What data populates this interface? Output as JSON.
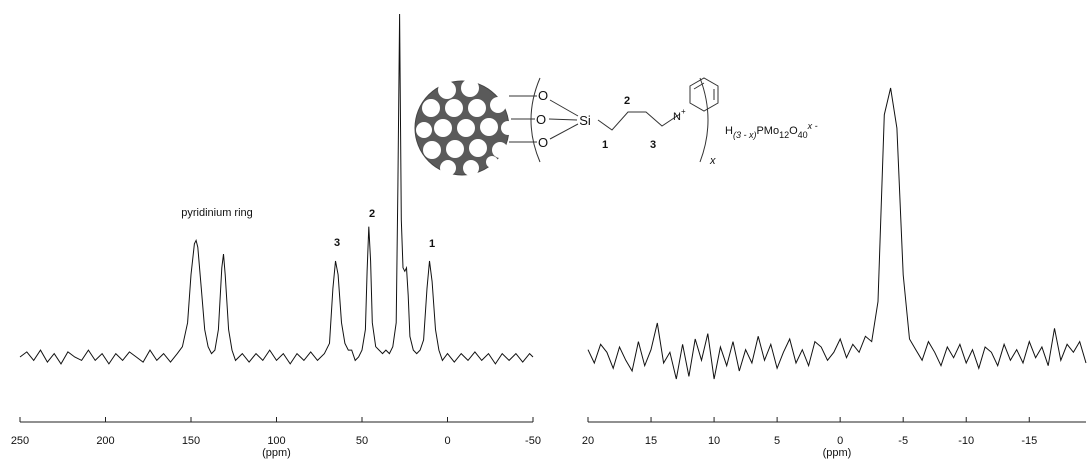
{
  "chart_data": [
    {
      "type": "line",
      "xlabel": "(ppm)",
      "x": [
        250,
        246,
        242,
        238,
        234,
        230,
        226,
        222,
        218,
        214,
        210,
        206,
        202,
        198,
        194,
        190,
        186,
        182,
        178,
        174,
        170,
        166,
        162,
        158,
        155,
        152,
        150,
        148,
        147,
        146,
        144,
        142,
        140,
        138,
        136,
        134,
        132,
        131,
        130,
        128,
        126,
        124,
        120,
        116,
        112,
        108,
        104,
        100,
        96,
        92,
        88,
        84,
        80,
        76,
        72,
        69,
        67,
        65.5,
        64,
        62,
        60,
        58,
        56,
        54,
        52,
        50,
        48,
        47,
        46,
        45,
        44,
        42,
        40,
        38,
        36,
        34,
        32,
        30,
        29,
        28,
        27,
        26,
        25,
        24,
        23,
        22,
        20,
        18,
        16,
        14,
        12,
        10.5,
        9,
        7,
        5,
        3,
        0,
        -4,
        -8,
        -12,
        -16,
        -20,
        -24,
        -28,
        -32,
        -36,
        -40,
        -44,
        -48,
        -50
      ],
      "values": [
        0,
        1.5,
        -1,
        2,
        -1.5,
        1,
        -2,
        1.5,
        0,
        -1,
        2,
        -1,
        1,
        -2,
        1,
        -1,
        1.5,
        0,
        -1.5,
        2,
        -1,
        1,
        -1.5,
        1,
        3,
        10,
        24,
        33,
        34,
        32,
        20,
        8,
        3,
        1,
        2,
        8,
        26,
        30,
        24,
        8,
        2,
        -1,
        1,
        -1.5,
        1,
        -1,
        2,
        -1,
        1,
        -2,
        1,
        -1,
        1.5,
        -1,
        1,
        4,
        20,
        28,
        24,
        10,
        4,
        2,
        2,
        -1,
        0,
        2,
        8,
        25,
        38,
        28,
        10,
        3,
        2,
        1,
        2,
        1,
        3,
        10,
        50,
        100,
        40,
        26,
        25,
        26,
        18,
        6,
        2,
        1,
        2,
        5,
        20,
        28,
        22,
        8,
        2,
        -1,
        1,
        -1.5,
        1,
        -1,
        1.5,
        -1,
        1,
        -2,
        1,
        -1,
        1,
        -1.5,
        1,
        0
      ],
      "color": "#111111",
      "xlim": [
        250,
        -50
      ],
      "xticks": [
        250,
        200,
        150,
        100,
        50,
        0,
        -50
      ],
      "ylim": [
        -20,
        100
      ],
      "annotations": [
        "pyridinium ring",
        "3",
        "2",
        "1"
      ]
    },
    {
      "type": "line",
      "xlabel": "(ppm)",
      "x": [
        20,
        19.5,
        19,
        18.5,
        18,
        17.5,
        17,
        16.5,
        16,
        15.5,
        15,
        14.5,
        14,
        13.5,
        13,
        12.5,
        12,
        11.5,
        11,
        10.5,
        10,
        9.5,
        9,
        8.5,
        8,
        7.5,
        7,
        6.5,
        6,
        5.5,
        5,
        4.5,
        4,
        3.5,
        3,
        2.5,
        2,
        1.5,
        1,
        0.5,
        0,
        -0.5,
        -1,
        -1.5,
        -2,
        -2.5,
        -3,
        -3.5,
        -4,
        -4.5,
        -5,
        -5.5,
        -6,
        -6.5,
        -7,
        -7.5,
        -8,
        -8.5,
        -9,
        -9.5,
        -10,
        -10.5,
        -11,
        -11.5,
        -12,
        -12.5,
        -13,
        -13.5,
        -14,
        -14.5,
        -15,
        -15.5,
        -16,
        -16.5,
        -17,
        -17.5,
        -18,
        -18.5,
        -19,
        -19.5
      ],
      "values": [
        2,
        -3,
        4,
        1,
        -5,
        3,
        -2,
        -6,
        5,
        -4,
        2,
        12,
        -3,
        1,
        -9,
        4,
        -8,
        6,
        -2,
        8,
        -9,
        3,
        -4,
        5,
        -6,
        2,
        -3,
        7,
        -2,
        4,
        -5,
        1,
        6,
        -3,
        2,
        -4,
        5,
        3,
        -2,
        1,
        6,
        -1,
        4,
        1,
        7,
        5,
        20,
        90,
        100,
        85,
        30,
        6,
        2,
        -2,
        5,
        1,
        -4,
        3,
        -1,
        4,
        -3,
        2,
        -5,
        3,
        1,
        -4,
        4,
        -2,
        2,
        -3,
        5,
        -1,
        3,
        -4,
        10,
        -2,
        4,
        1,
        5,
        -3
      ],
      "color": "#111111",
      "xlim": [
        20,
        -19.5
      ],
      "xticks": [
        20,
        15,
        10,
        5,
        0,
        -5,
        -10,
        -15
      ],
      "ylim": [
        -20,
        100
      ]
    }
  ],
  "structure": {
    "oxygens": [
      "O",
      "O",
      "O"
    ],
    "silicon": "Si",
    "nitrogen": "N",
    "charge": "+",
    "chain_labels": [
      "1",
      "2",
      "3"
    ],
    "subscript": "x",
    "formula": [
      "H",
      "(3 - x)",
      "PMo",
      "12",
      "O",
      "40",
      "x -"
    ]
  }
}
